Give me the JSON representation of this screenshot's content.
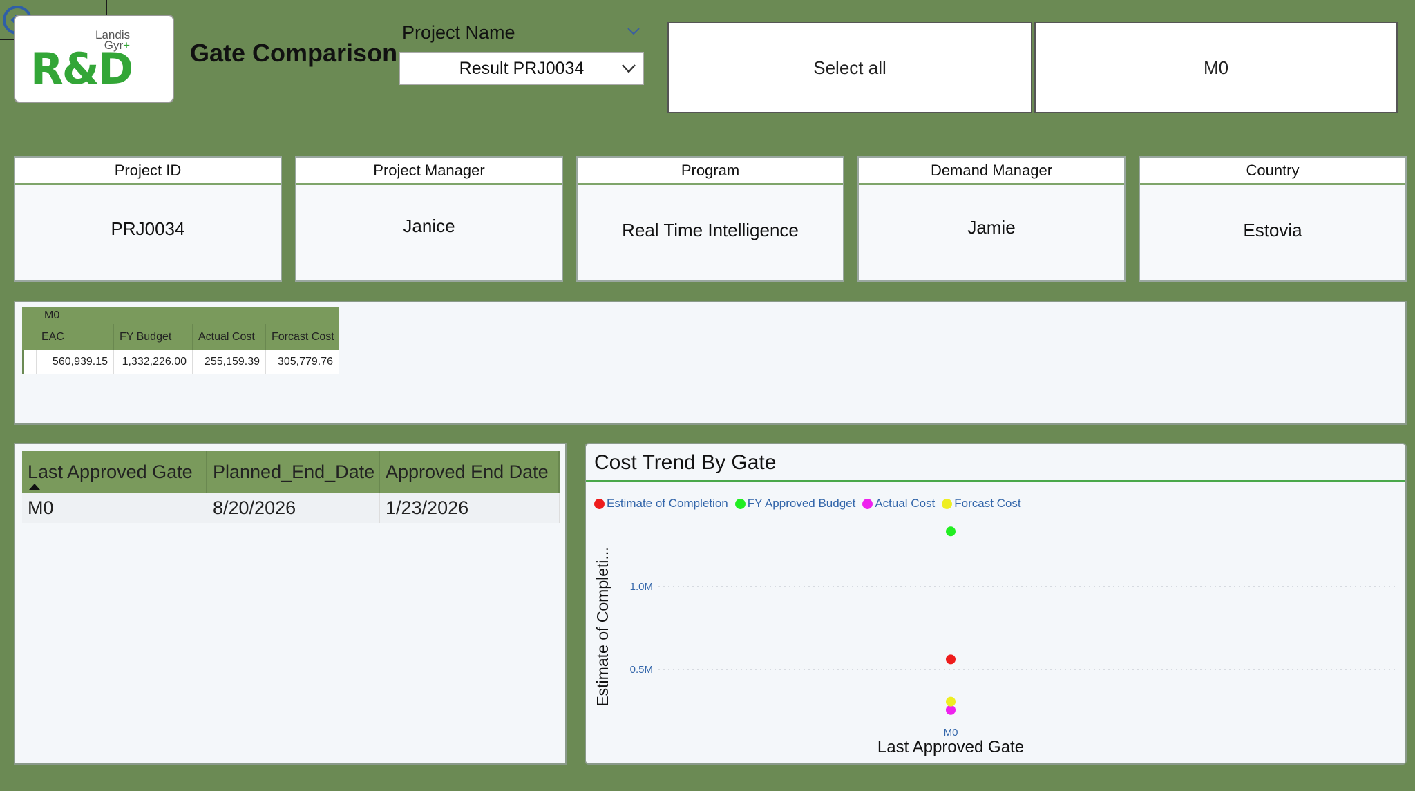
{
  "header": {
    "title": "Gate Comparison",
    "logo_main": "R&D",
    "logo_sub_line1": "Landis",
    "logo_sub_line2": "Gyr"
  },
  "project_slicer": {
    "label": "Project Name",
    "selected": "Result PRJ0034"
  },
  "gate_buttons": {
    "select_all": "Select all",
    "gate": "M0"
  },
  "cards": [
    {
      "label": "Project ID",
      "value": "PRJ0034"
    },
    {
      "label": "Project Manager",
      "value": "Janice"
    },
    {
      "label": "Program",
      "value": "Real Time Intelligence"
    },
    {
      "label": "Demand Manager",
      "value": "Jamie"
    },
    {
      "label": "Country",
      "value": "Estovia"
    }
  ],
  "matrix": {
    "group": "M0",
    "columns": [
      "EAC",
      "FY Budget",
      "Actual Cost",
      "Forcast Cost"
    ],
    "values": [
      "560,939.15",
      "1,332,226.00",
      "255,159.39",
      "305,779.76"
    ]
  },
  "gate_table": {
    "columns": [
      "Last Approved Gate",
      "Planned_End_Date",
      "Approved End Date"
    ],
    "rows": [
      [
        "M0",
        "8/20/2026",
        "1/23/2026"
      ]
    ]
  },
  "chart_data": {
    "type": "scatter",
    "title": "Cost Trend By Gate",
    "xlabel": "Last Approved Gate",
    "ylabel": "Estimate of Completi...",
    "categories": [
      "M0"
    ],
    "y_ticks": [
      "0.5M",
      "1.0M"
    ],
    "y_tick_values": [
      500000,
      1000000
    ],
    "ylim": [
      200000,
      1400000
    ],
    "grid": true,
    "legend_position": "top-left",
    "series": [
      {
        "name": "Estimate of Completion",
        "color": "#ee1c1c",
        "values": [
          560939.15
        ]
      },
      {
        "name": "FY Approved Budget",
        "color": "#22ee22",
        "values": [
          1332226.0
        ]
      },
      {
        "name": "Actual Cost",
        "color": "#ee22ee",
        "values": [
          255159.39
        ]
      },
      {
        "name": "Forcast Cost",
        "color": "#eeee22",
        "values": [
          305779.76
        ]
      }
    ]
  }
}
